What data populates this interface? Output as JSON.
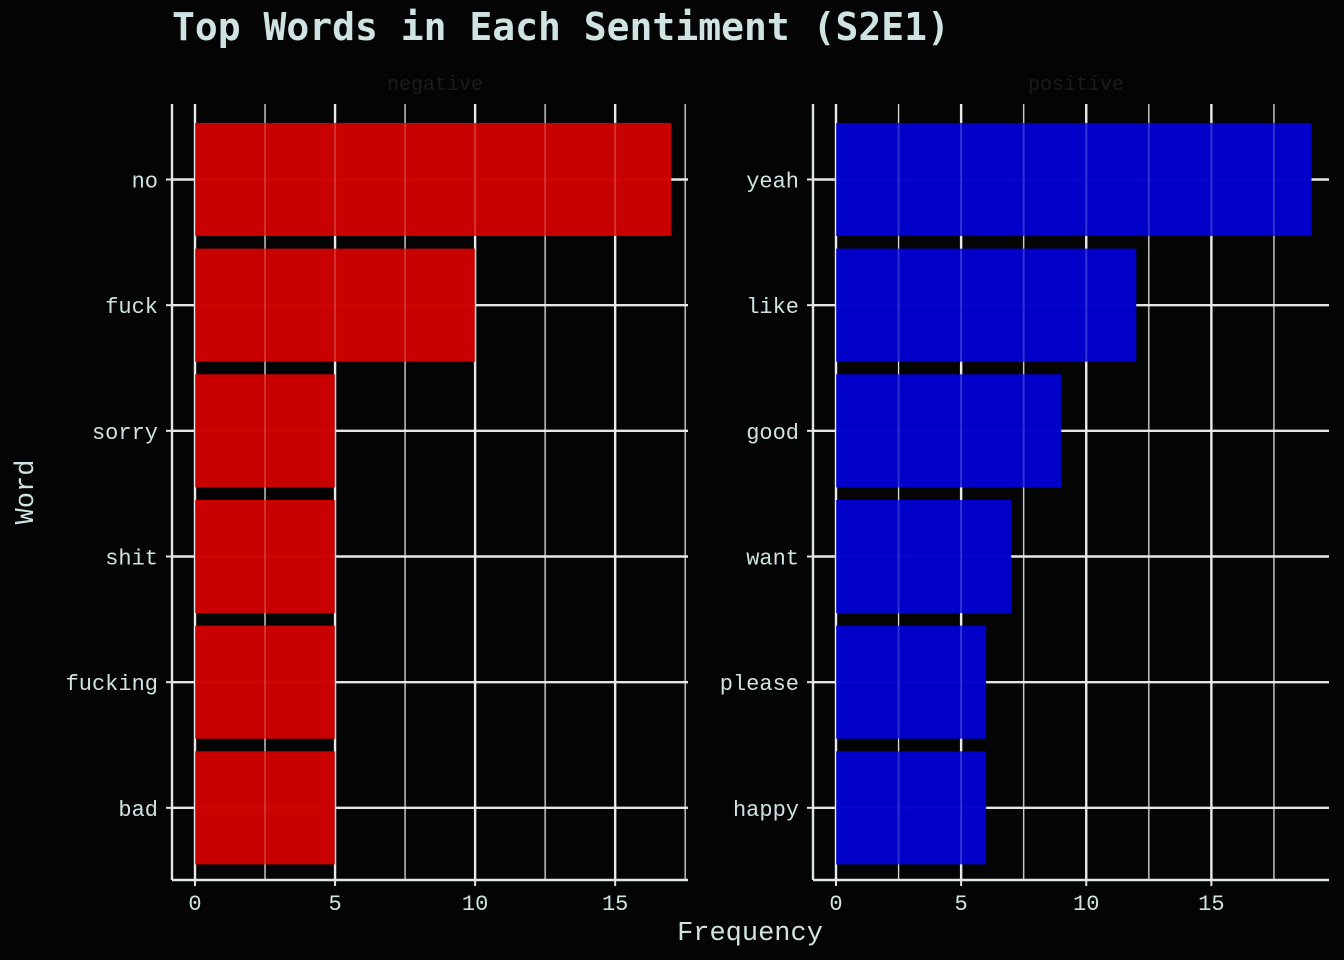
{
  "chart_data": {
    "type": "bar",
    "orientation": "horizontal",
    "title": "Top Words in Each Sentiment (S2E1)",
    "xlabel": "Frequency",
    "ylabel": "Word",
    "grid": true,
    "legend": "none",
    "panels": [
      {
        "strip_label": "negative",
        "color": "#cc0000",
        "xlim": [
          0,
          17.6
        ],
        "xticks": [
          0,
          5,
          10,
          15
        ],
        "categories": [
          "no",
          "fuck",
          "sorry",
          "shit",
          "fucking",
          "bad"
        ],
        "values": [
          17,
          10,
          5,
          5,
          5,
          5
        ]
      },
      {
        "strip_label": "positive",
        "color": "#0000cc",
        "xlim": [
          0,
          19.7
        ],
        "xticks": [
          0,
          5,
          10,
          15
        ],
        "categories": [
          "yeah",
          "like",
          "good",
          "want",
          "please",
          "happy"
        ],
        "values": [
          19,
          12,
          9,
          7,
          6,
          6
        ]
      }
    ]
  }
}
